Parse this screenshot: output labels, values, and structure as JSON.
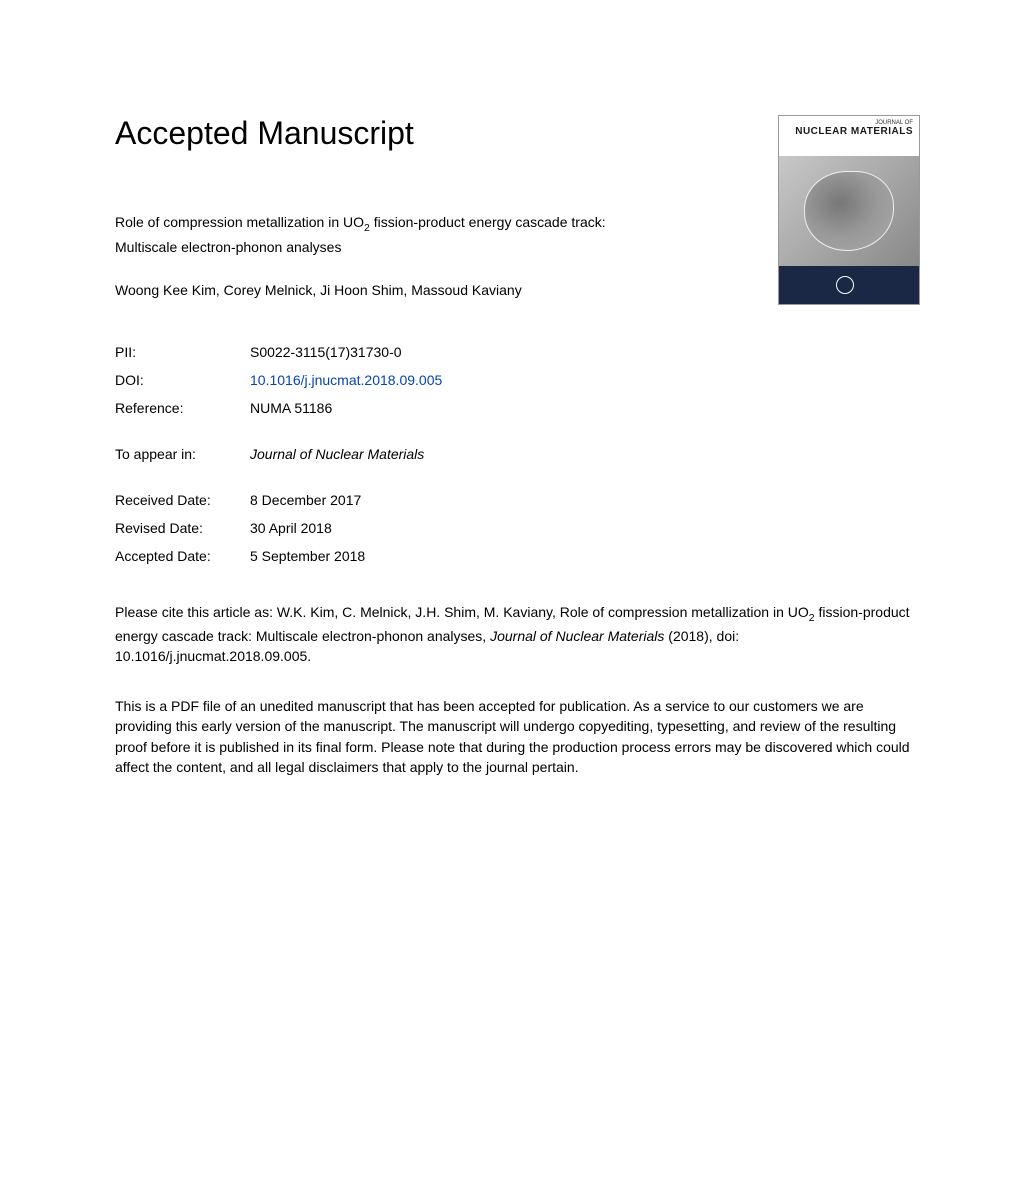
{
  "heading": "Accepted Manuscript",
  "cover": {
    "journal_of": "JOURNAL OF",
    "journal_title": "NUCLEAR MATERIALS"
  },
  "title": {
    "line1_pre": "Role of compression metallization in UO",
    "line1_sub": "2",
    "line1_post": " fission-product energy cascade track:",
    "line2": "Multiscale electron-phonon analyses"
  },
  "authors": "Woong Kee Kim, Corey Melnick, Ji Hoon Shim, Massoud Kaviany",
  "meta": {
    "pii_label": "PII:",
    "pii_value": "S0022-3115(17)31730-0",
    "doi_label": "DOI:",
    "doi_value": "10.1016/j.jnucmat.2018.09.005",
    "ref_label": "Reference:",
    "ref_value": "NUMA 51186",
    "appear_label": "To appear in:",
    "appear_value": "Journal of Nuclear Materials",
    "received_label": "Received Date:",
    "received_value": "8 December 2017",
    "revised_label": "Revised Date:",
    "revised_value": "30 April 2018",
    "accepted_label": "Accepted Date:",
    "accepted_value": "5 September 2018"
  },
  "citation": {
    "text1": "Please cite this article as: W.K. Kim, C. Melnick, J.H. Shim, M. Kaviany, Role of compression metallization in UO",
    "sub": "2",
    "text2": " fission-product energy cascade track: Multiscale electron-phonon analyses, ",
    "journal": "Journal of Nuclear Materials",
    "text3": " (2018), doi: 10.1016/j.jnucmat.2018.09.005."
  },
  "disclaimer": "This is a PDF file of an unedited manuscript that has been accepted for publication. As a service to our customers we are providing this early version of the manuscript. The manuscript will undergo copyediting, typesetting, and review of the resulting proof before it is published in its final form. Please note that during the production process errors may be discovered which could affect the content, and all legal disclaimers that apply to the journal pertain."
}
